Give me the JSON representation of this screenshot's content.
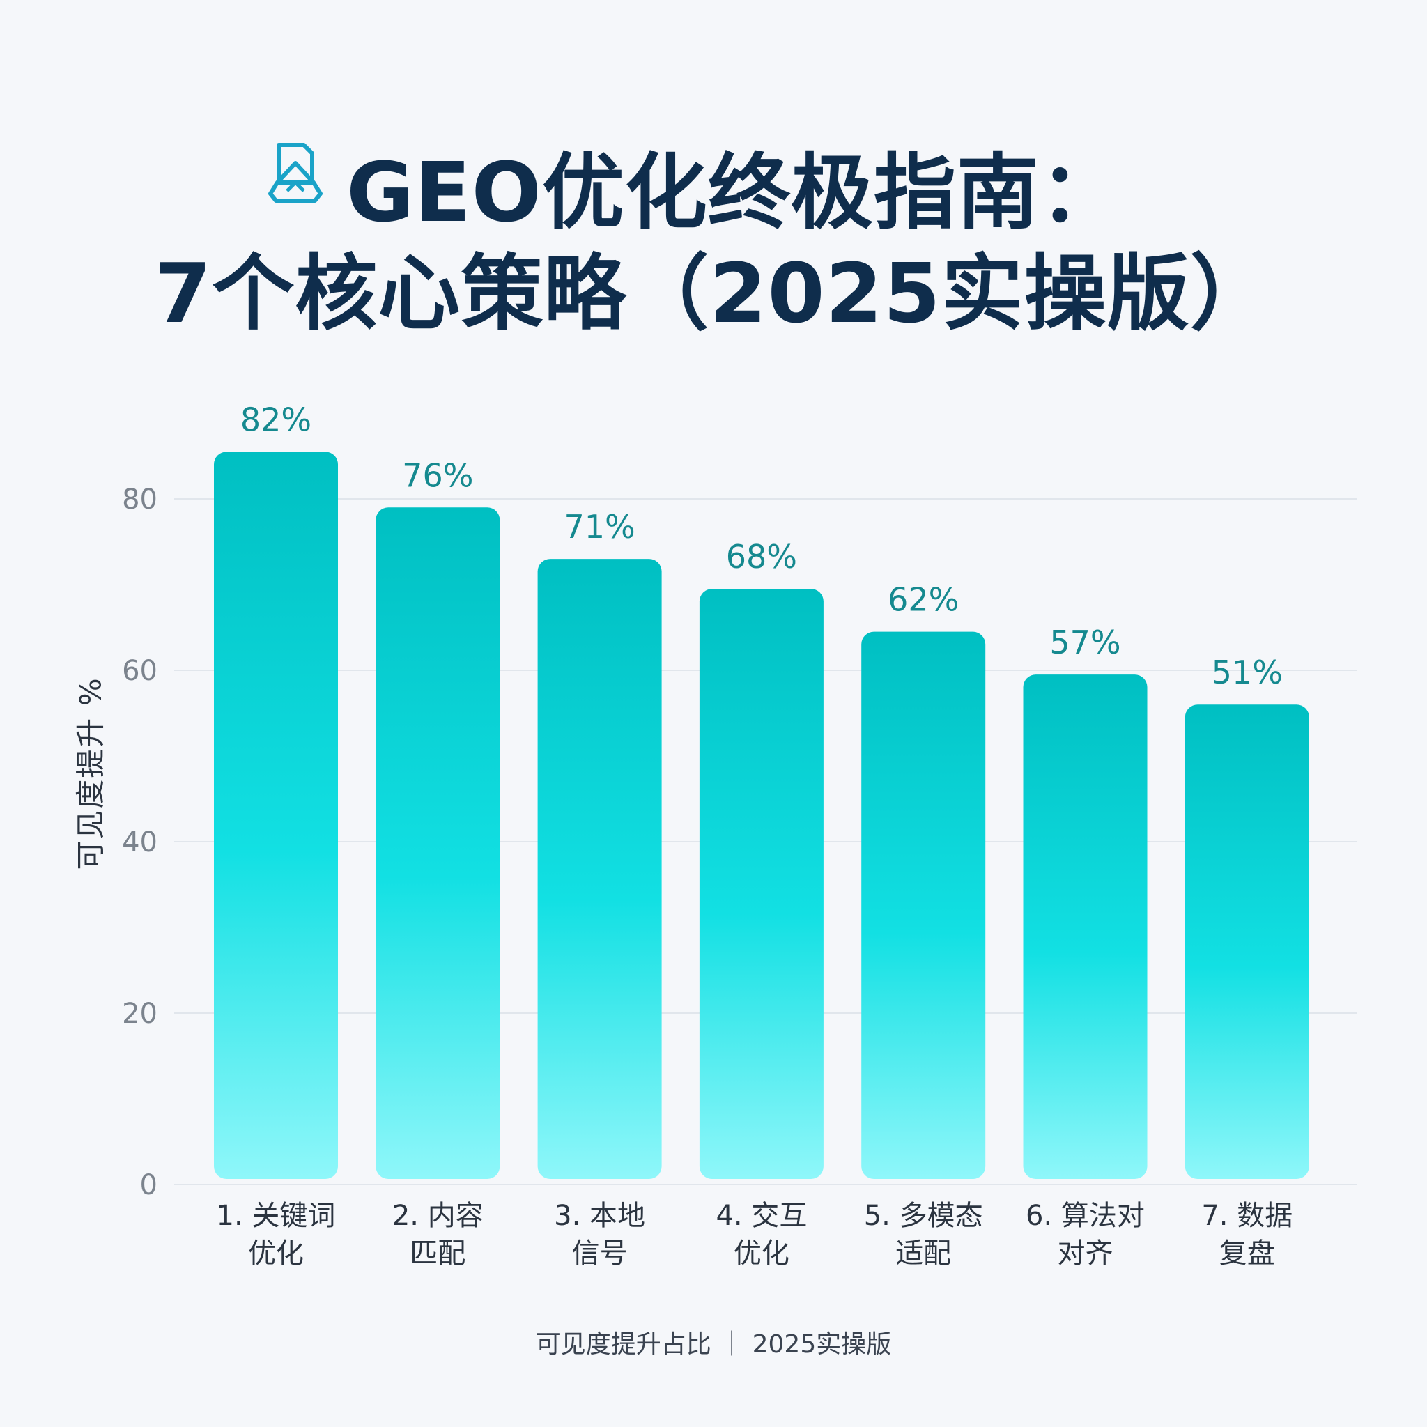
{
  "title": {
    "line1": "GEO优化终极指南：",
    "line2": "7个核心策略（2025实操版）",
    "icon": "document-icon"
  },
  "footer": "可见度提升占比 ｜ 2025实操版",
  "colors": {
    "title": "#0f2d4c",
    "bar_top": "#00bfc2",
    "bar_mid": "#12e0e3",
    "bar_bottom": "#8ff7fa",
    "value_label": "#15898f",
    "icon": "#1aa3c8"
  },
  "chart_data": {
    "type": "bar",
    "categories": [
      [
        "1. 关键词",
        "优化"
      ],
      [
        "2. 内容",
        "匹配"
      ],
      [
        "3. 本地",
        "信号"
      ],
      [
        "4. 交互",
        "优化"
      ],
      [
        "5. 多模态",
        "适配"
      ],
      [
        "6. 算法对",
        "对齐"
      ],
      [
        "7. 数据",
        "复盘"
      ]
    ],
    "values": [
      82,
      76,
      71,
      68,
      62,
      57,
      51
    ],
    "value_labels": [
      "82%",
      "76%",
      "71%",
      "68%",
      "62%",
      "57%",
      "51%"
    ],
    "bar_heights": [
      85.5,
      79,
      73,
      69.5,
      64.5,
      59.5,
      56
    ],
    "ylabel": "可见度提升 %",
    "yticks": [
      0,
      20,
      40,
      60,
      80
    ],
    "ylim": [
      0,
      90
    ],
    "grid": true
  }
}
